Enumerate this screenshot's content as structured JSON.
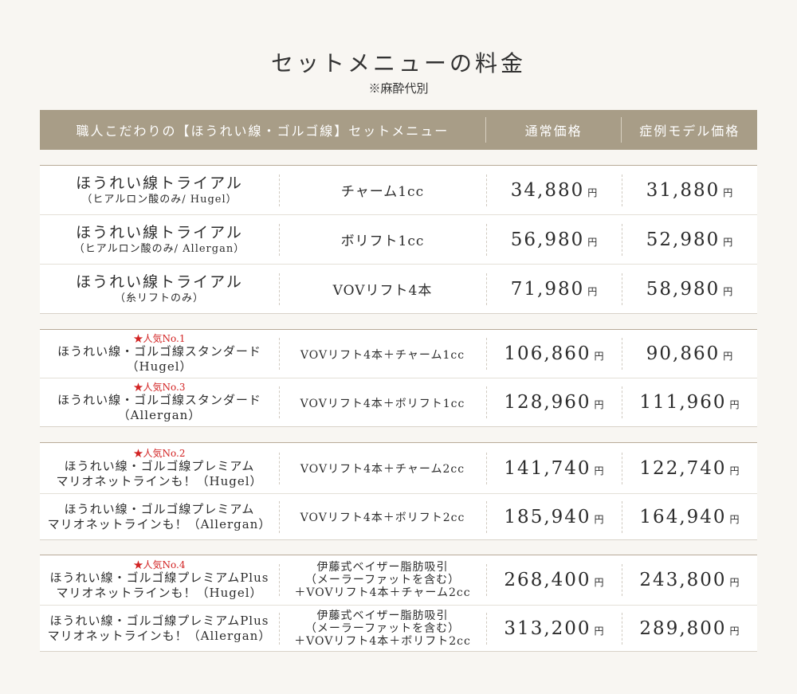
{
  "title": "セットメニューの料金",
  "subtitle": "※麻酔代別",
  "header": {
    "col1": "職人こだわりの【ほうれい線・ゴルゴ線】セットメニュー",
    "col2": "通常価格",
    "col3": "症例モデル価格"
  },
  "yen": "円",
  "groups": [
    {
      "rows": [
        {
          "badge": "",
          "name": "ほうれい線トライアル",
          "name2": "（ヒアルロン酸のみ/ Hugel）",
          "menu": [
            "チャーム1cc"
          ],
          "regular": "34,880",
          "model": "31,880"
        },
        {
          "badge": "",
          "name": "ほうれい線トライアル",
          "name2": "（ヒアルロン酸のみ/ Allergan）",
          "menu": [
            "ボリフト1cc"
          ],
          "regular": "56,980",
          "model": "52,980"
        },
        {
          "badge": "",
          "name": "ほうれい線トライアル",
          "name2": "（糸リフトのみ）",
          "menu": [
            "VOVリフト4本"
          ],
          "regular": "71,980",
          "model": "58,980"
        }
      ]
    },
    {
      "rows": [
        {
          "badge": "★人気No.1",
          "name": "ほうれい線・ゴルゴ線スタンダード",
          "name2": "（Hugel）",
          "menu": [
            "VOVリフト4本＋チャーム1cc"
          ],
          "regular": "106,860",
          "model": "90,860"
        },
        {
          "badge": "★人気No.3",
          "name": "ほうれい線・ゴルゴ線スタンダード",
          "name2": "（Allergan）",
          "menu": [
            "VOVリフト4本＋ボリフト1cc"
          ],
          "regular": "128,960",
          "model": "111,960"
        }
      ]
    },
    {
      "rows": [
        {
          "badge": "★人気No.2",
          "name": "ほうれい線・ゴルゴ線プレミアム",
          "name2": "マリオネットラインも！（Hugel）",
          "menu": [
            "VOVリフト4本＋チャーム2cc"
          ],
          "regular": "141,740",
          "model": "122,740"
        },
        {
          "badge": "",
          "name": "ほうれい線・ゴルゴ線プレミアム",
          "name2": "マリオネットラインも！（Allergan）",
          "menu": [
            "VOVリフト4本＋ボリフト2cc"
          ],
          "regular": "185,940",
          "model": "164,940"
        }
      ]
    },
    {
      "rows": [
        {
          "badge": "★人気No.4",
          "name": "ほうれい線・ゴルゴ線プレミアムPlus",
          "name2": "マリオネットラインも！（Hugel）",
          "menu": [
            "伊藤式ベイザー脂肪吸引",
            "（メーラーファットを含む）",
            "＋VOVリフト4本＋チャーム2cc"
          ],
          "regular": "268,400",
          "model": "243,800"
        },
        {
          "badge": "",
          "name": "ほうれい線・ゴルゴ線プレミアムPlus",
          "name2": "マリオネットラインも！（Allergan）",
          "menu": [
            "伊藤式ベイザー脂肪吸引",
            "（メーラーファットを含む）",
            "＋VOVリフト4本＋ボリフト2cc"
          ],
          "regular": "313,200",
          "model": "289,800"
        }
      ]
    }
  ]
}
